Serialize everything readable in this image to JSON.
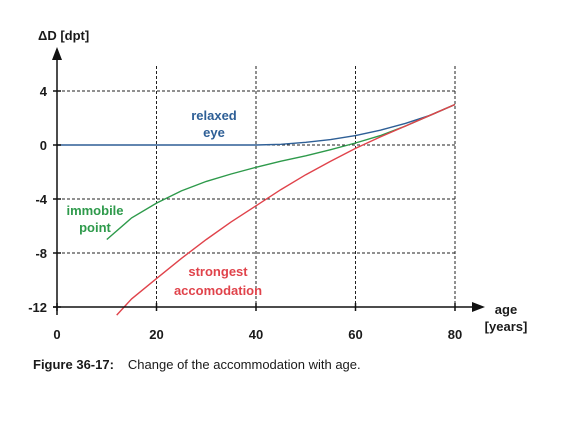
{
  "chart_data": {
    "type": "line",
    "ylabel": "ΔD [dpt]",
    "xlabel_lines": [
      "age",
      "[years]"
    ],
    "xlim": [
      0,
      80
    ],
    "ylim": [
      -12,
      4
    ],
    "xticks": [
      0,
      20,
      40,
      60,
      80
    ],
    "yticks": [
      4,
      0,
      -4,
      -8,
      -12
    ],
    "ytick_labels": [
      "4",
      "0",
      "-4",
      "-8",
      "-12"
    ],
    "grid": "dashed",
    "series": [
      {
        "key": "relaxed",
        "name_lines": [
          "relaxed",
          "eye"
        ],
        "color": "#2e5f96",
        "x": [
          0,
          10,
          20,
          30,
          40,
          45,
          50,
          55,
          60,
          65,
          70,
          75,
          80
        ],
        "y": [
          0,
          0,
          0,
          0,
          0,
          0.05,
          0.2,
          0.4,
          0.7,
          1.1,
          1.6,
          2.2,
          3.0
        ]
      },
      {
        "key": "immobile",
        "name_lines": [
          "immobile",
          "point"
        ],
        "color": "#2e9a4b",
        "x": [
          10,
          15,
          20,
          25,
          30,
          35,
          40,
          45,
          50,
          55,
          60,
          65,
          70,
          75,
          80
        ],
        "y": [
          -7.0,
          -5.4,
          -4.3,
          -3.4,
          -2.7,
          -2.15,
          -1.65,
          -1.2,
          -0.8,
          -0.35,
          0.15,
          0.7,
          1.4,
          2.2,
          3.0
        ]
      },
      {
        "key": "strongest",
        "name_lines": [
          "strongest",
          "accomodation"
        ],
        "color": "#e0434b",
        "x": [
          12,
          15,
          20,
          25,
          30,
          35,
          40,
          45,
          50,
          55,
          60,
          65,
          70,
          75,
          80
        ],
        "y": [
          -12.6,
          -11.4,
          -9.9,
          -8.4,
          -7.0,
          -5.7,
          -4.5,
          -3.3,
          -2.2,
          -1.2,
          -0.25,
          0.6,
          1.4,
          2.2,
          3.0
        ]
      }
    ]
  },
  "caption": {
    "figure_number": "Figure 36-17:",
    "text": "Change of the accommodation with age."
  }
}
